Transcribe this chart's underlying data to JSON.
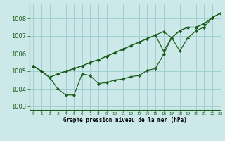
{
  "title": "Graphe pression niveau de la mer (hPa)",
  "bg_color": "#cce8e8",
  "grid_color": "#99cccc",
  "line_color": "#1a5c1a",
  "x_min": -0.5,
  "x_max": 23,
  "y_min": 1002.8,
  "y_max": 1008.8,
  "y_ticks": [
    1003,
    1004,
    1005,
    1006,
    1007,
    1008
  ],
  "series1": [
    1005.3,
    1005.0,
    1004.65,
    1004.0,
    1003.65,
    1003.65,
    1004.85,
    1004.75,
    1004.3,
    1004.35,
    1004.5,
    1004.55,
    1004.7,
    1004.75,
    1005.05,
    1005.15,
    1005.95,
    1006.9,
    1006.15,
    1006.9,
    1007.3,
    1007.5,
    1008.05,
    1008.3
  ],
  "series2": [
    1005.3,
    1005.0,
    1004.65,
    1004.85,
    1005.0,
    1005.15,
    1005.3,
    1005.5,
    1005.65,
    1005.85,
    1006.05,
    1006.25,
    1006.45,
    1006.65,
    1006.85,
    1007.05,
    1006.15,
    1006.9,
    1007.3,
    1007.5,
    1007.5,
    1007.7,
    1008.05,
    1008.3
  ],
  "series3": [
    1005.3,
    1005.0,
    1004.65,
    1004.85,
    1005.0,
    1005.15,
    1005.3,
    1005.5,
    1005.65,
    1005.85,
    1006.05,
    1006.25,
    1006.45,
    1006.65,
    1006.85,
    1007.05,
    1007.25,
    1006.9,
    1007.3,
    1007.5,
    1007.5,
    1007.7,
    1008.05,
    1008.3
  ],
  "xlabel_fontsize": 5.5,
  "ytick_fontsize": 6,
  "xtick_fontsize": 4.2
}
